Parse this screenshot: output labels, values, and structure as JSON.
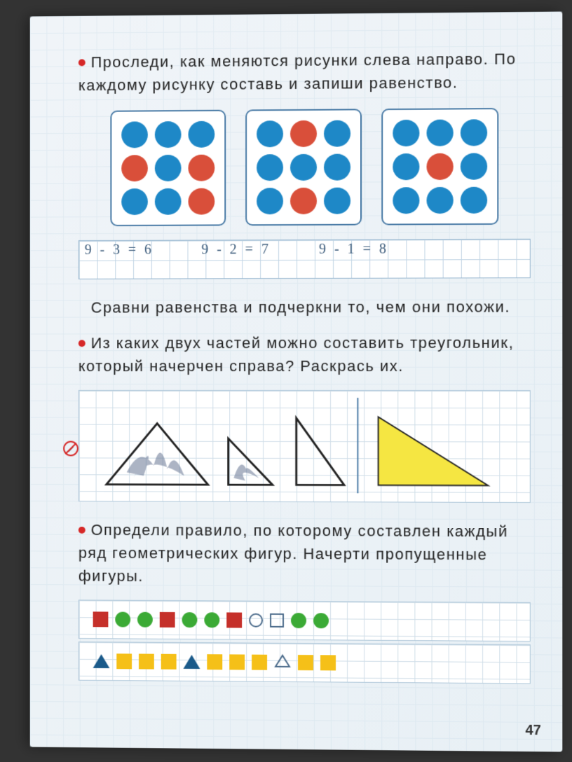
{
  "colors": {
    "blue": "#1e88c7",
    "red": "#d94f3a",
    "yellow": "#f5e642",
    "green": "#3baa35",
    "dark_red": "#c5302a",
    "dark_blue": "#1a5a8a"
  },
  "task1": {
    "text": "Проследи, как меняются рисунки слева на­право. По каждому рисунку составь и запиши равенство.",
    "grids": [
      [
        "blue",
        "blue",
        "blue",
        "red",
        "blue",
        "red",
        "blue",
        "blue",
        "red"
      ],
      [
        "blue",
        "red",
        "blue",
        "blue",
        "blue",
        "blue",
        "blue",
        "red",
        "blue"
      ],
      [
        "blue",
        "blue",
        "blue",
        "blue",
        "red",
        "blue",
        "blue",
        "blue",
        "blue"
      ]
    ],
    "equations": [
      "9-3=6",
      "9-2=7",
      "9-1=8"
    ]
  },
  "task2": {
    "text": "Сравни равенства и подчеркни то, чем они похожи."
  },
  "task3": {
    "text": "Из каких двух частей можно составить тре­угольник, который начерчен справа? Раскрась их.",
    "target_triangle_color": "#f5e642"
  },
  "task4": {
    "text": "Определи правило, по которому составлен каждый ряд геометрических фигур. Начерти пропущенные фигуры.",
    "row1": [
      {
        "shape": "sq",
        "color": "#c5302a"
      },
      {
        "shape": "cir",
        "color": "#3baa35"
      },
      {
        "shape": "cir",
        "color": "#3baa35"
      },
      {
        "shape": "sq",
        "color": "#c5302a"
      },
      {
        "shape": "cir",
        "color": "#3baa35"
      },
      {
        "shape": "cir",
        "color": "#3baa35"
      },
      {
        "shape": "sq",
        "color": "#c5302a"
      },
      {
        "shape": "drawn-cir"
      },
      {
        "shape": "drawn-sq"
      },
      {
        "shape": "cir",
        "color": "#3baa35"
      },
      {
        "shape": "cir",
        "color": "#3baa35"
      }
    ],
    "row2": [
      {
        "shape": "tri",
        "color": "#1a5a8a"
      },
      {
        "shape": "sq",
        "color": "#f5c018"
      },
      {
        "shape": "sq",
        "color": "#f5c018"
      },
      {
        "shape": "sq",
        "color": "#f5c018"
      },
      {
        "shape": "tri",
        "color": "#1a5a8a"
      },
      {
        "shape": "sq",
        "color": "#f5c018"
      },
      {
        "shape": "sq",
        "color": "#f5c018"
      },
      {
        "shape": "sq",
        "color": "#f5c018"
      },
      {
        "shape": "drawn-tri"
      },
      {
        "shape": "sq",
        "color": "#f5c018"
      },
      {
        "shape": "sq",
        "color": "#f5c018"
      }
    ]
  },
  "page_number": "47"
}
